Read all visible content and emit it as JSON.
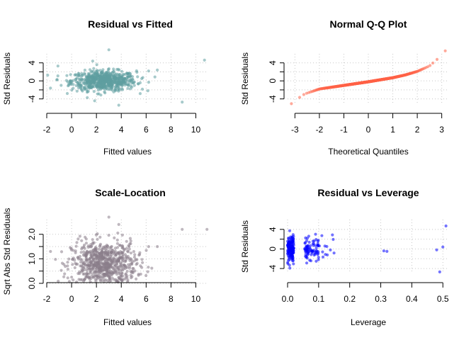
{
  "chart_data": [
    {
      "type": "scatter",
      "title": "Residual vs Fitted",
      "xlabel": "Fitted values",
      "ylabel": "Std Residuals",
      "xlim": [
        -2,
        11
      ],
      "ylim": [
        -5,
        6
      ],
      "xticks": [
        -2,
        0,
        2,
        4,
        6,
        8,
        10
      ],
      "yticks": [
        -4,
        0,
        4
      ],
      "yminor": [
        -2,
        2
      ],
      "grid": true,
      "color": "#5f9ea0",
      "outliers": [
        [
          10.7,
          4.6
        ],
        [
          8.9,
          -4.7
        ],
        [
          3.0,
          6.9
        ],
        [
          3.8,
          -5.4
        ],
        [
          1.7,
          4.4
        ],
        [
          -1.1,
          3.3
        ],
        [
          -1.7,
          -1.6
        ],
        [
          6.9,
          2.4
        ],
        [
          6.2,
          2.2
        ]
      ],
      "cloud": {
        "x_center": 2.6,
        "x_spread": 1.3,
        "y_spread": 1.1,
        "count": 700
      }
    },
    {
      "type": "scatter",
      "title": "Normal Q-Q Plot",
      "xlabel": "Theoretical Quantiles",
      "ylabel": "Std Residuals",
      "xlim": [
        -3.3,
        3.3
      ],
      "ylim": [
        -5,
        6
      ],
      "xticks": [
        -3,
        -2,
        -1,
        0,
        1,
        2,
        3
      ],
      "yticks": [
        -4,
        0,
        4
      ],
      "yminor": [
        -2,
        2
      ],
      "grid": true,
      "color": "#ff6347",
      "quantile_curve": [
        [
          -3.2,
          -5.3
        ],
        [
          -2.9,
          -4.0
        ],
        [
          -2.6,
          -2.9
        ],
        [
          -2.0,
          -1.8
        ],
        [
          -1.0,
          -1.0
        ],
        [
          0.0,
          -0.2
        ],
        [
          1.0,
          0.7
        ],
        [
          1.5,
          1.3
        ],
        [
          2.0,
          2.1
        ],
        [
          2.5,
          3.3
        ],
        [
          2.9,
          5.2
        ],
        [
          3.2,
          7.0
        ]
      ]
    },
    {
      "type": "scatter",
      "title": "Scale-Location",
      "xlabel": "Fitted values",
      "ylabel": "Sqrt Abs Std Residuals",
      "xlim": [
        -2,
        11
      ],
      "ylim": [
        0,
        2.6
      ],
      "xticks": [
        -2,
        0,
        2,
        4,
        6,
        8,
        10
      ],
      "yticks": [
        0.0,
        1.0,
        2.0
      ],
      "yticklabels": [
        "0.0",
        "1.0",
        "2.0"
      ],
      "yminor": [
        0.5,
        1.5
      ],
      "grid": true,
      "color": "#8b7d8b",
      "outliers": [
        [
          10.9,
          2.2
        ],
        [
          8.9,
          2.2
        ],
        [
          3.0,
          2.7
        ],
        [
          3.8,
          2.4
        ],
        [
          -1.7,
          1.3
        ],
        [
          6.2,
          1.5
        ],
        [
          6.9,
          1.5
        ]
      ],
      "cloud": {
        "x_center": 2.6,
        "x_spread": 1.3,
        "count": 700
      }
    },
    {
      "type": "scatter",
      "title": "Residual vs Leverage",
      "xlabel": "Leverage",
      "ylabel": "Std Residuals",
      "xlim": [
        0,
        0.52
      ],
      "ylim": [
        -5,
        6
      ],
      "xticks": [
        0.0,
        0.1,
        0.2,
        0.3,
        0.4,
        0.5
      ],
      "xticklabels": [
        "0.0",
        "0.1",
        "0.2",
        "0.3",
        "0.4",
        "0.5"
      ],
      "yticks": [
        -4,
        0,
        4
      ],
      "yminor": [
        -2,
        2
      ],
      "grid": true,
      "color": "#0000ff",
      "outliers": [
        [
          0.51,
          4.7
        ],
        [
          0.5,
          0.4
        ],
        [
          0.49,
          -4.7
        ],
        [
          0.31,
          -0.4
        ],
        [
          0.32,
          -0.5
        ],
        [
          0.48,
          -0.2
        ]
      ],
      "clusters": [
        {
          "x_min": 0.0,
          "x_max": 0.02,
          "count": 160
        },
        {
          "x_min": 0.055,
          "x_max": 0.1,
          "count": 80
        },
        {
          "x_min": 0.1,
          "x_max": 0.15,
          "count": 12
        }
      ]
    }
  ]
}
